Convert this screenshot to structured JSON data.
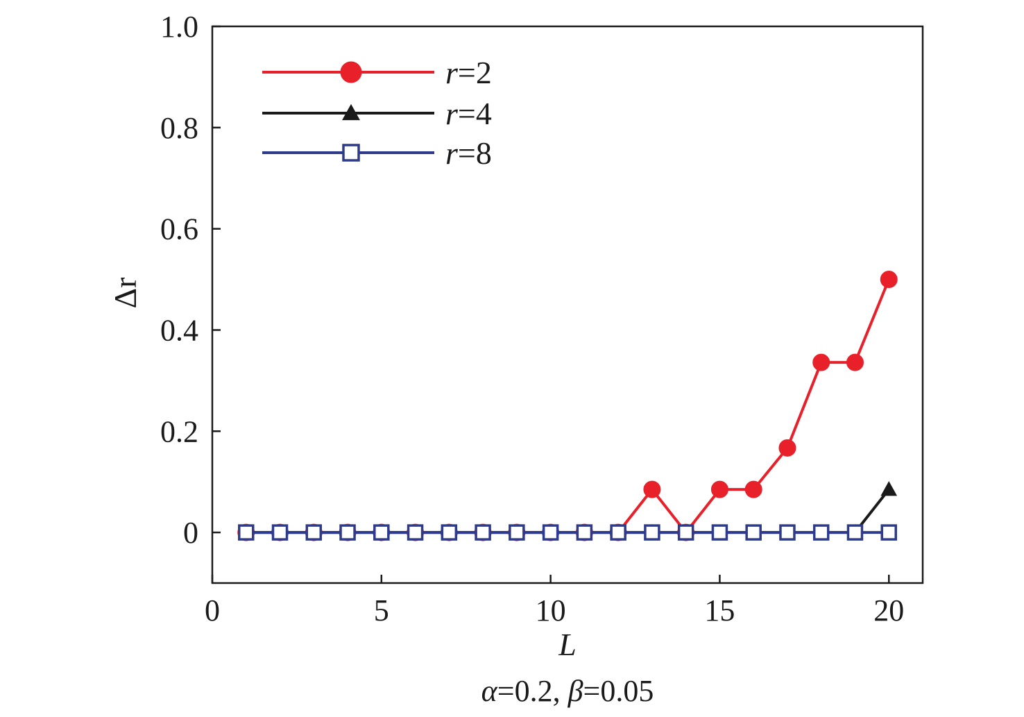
{
  "chart_data": {
    "type": "line",
    "xlabel": "L",
    "ylabel": "Δr",
    "caption": {
      "alpha_symbol": "α",
      "alpha_value": "=0.2, ",
      "beta_symbol": "β",
      "beta_value": "=0.05"
    },
    "xlim": [
      0,
      21
    ],
    "ylim": [
      -0.1,
      1.0
    ],
    "xticks": [
      0,
      5,
      10,
      15,
      20
    ],
    "xtick_labels": [
      "0",
      "5",
      "10",
      "15",
      "20"
    ],
    "yticks": [
      0,
      0.2,
      0.4,
      0.6,
      0.8,
      1.0
    ],
    "ytick_labels": [
      "0",
      "0.2",
      "0.4",
      "0.6",
      "0.8",
      "1.0"
    ],
    "grid": false,
    "legend_position": "top-left",
    "x": [
      1,
      2,
      3,
      4,
      5,
      6,
      7,
      8,
      9,
      10,
      11,
      12,
      13,
      14,
      15,
      16,
      17,
      18,
      19,
      20
    ],
    "series": [
      {
        "name_var": "r",
        "name_value": "=2",
        "color": "#e8202a",
        "marker": "circle",
        "values": [
          0,
          0,
          0,
          0,
          0,
          0,
          0,
          0,
          0,
          0,
          0,
          0,
          0.085,
          0,
          0.085,
          0.085,
          0.167,
          0.336,
          0.336,
          0.5
        ]
      },
      {
        "name_var": "r",
        "name_value": "=4",
        "color": "#1a1a1a",
        "marker": "triangle",
        "values": [
          0,
          0,
          0,
          0,
          0,
          0,
          0,
          0,
          0,
          0,
          0,
          0,
          0,
          0,
          0,
          0,
          0,
          0,
          0,
          0.085
        ]
      },
      {
        "name_var": "r",
        "name_value": "=8",
        "color": "#2e3a8c",
        "marker": "square-open",
        "values": [
          0,
          0,
          0,
          0,
          0,
          0,
          0,
          0,
          0,
          0,
          0,
          0,
          0,
          0,
          0,
          0,
          0,
          0,
          0,
          0
        ]
      }
    ]
  }
}
